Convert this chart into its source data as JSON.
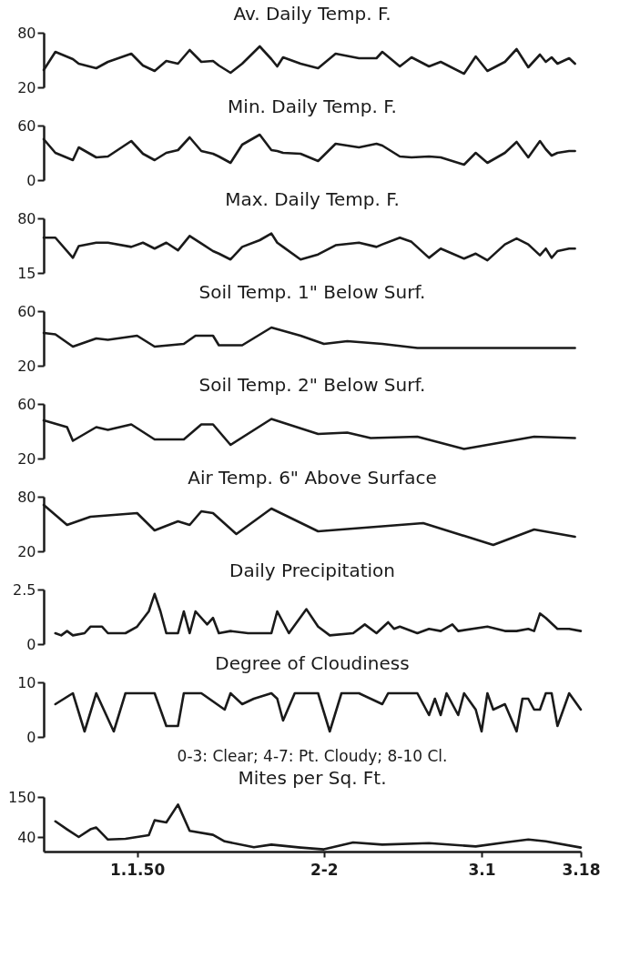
{
  "chart_data": [
    {
      "type": "line",
      "title": "Av. Daily Temp. F.",
      "xlim": [
        "1949-12-16",
        "1950-03-18"
      ],
      "ylim": [
        20,
        80
      ],
      "yticks": [
        20,
        80
      ],
      "tick_labels": "y",
      "x": [
        "1949-12-16",
        "1949-12-18",
        "1949-12-21",
        "1949-12-22",
        "1949-12-25",
        "1949-12-27",
        "1949-12-31",
        "1950-01-02",
        "1950-01-04",
        "1950-01-06",
        "1950-01-08",
        "1950-01-10",
        "1950-01-12",
        "1950-01-14",
        "1950-01-15",
        "1950-01-17",
        "1950-01-19",
        "1950-01-22",
        "1950-01-24",
        "1950-01-25",
        "1950-01-26",
        "1950-01-29",
        "1950-02-01",
        "1950-02-04",
        "1950-02-08",
        "1950-02-11",
        "1950-02-12",
        "1950-02-15",
        "1950-02-17",
        "1950-02-20",
        "1950-02-22",
        "1950-02-26",
        "1950-02-28",
        "1950-03-02",
        "1950-03-05",
        "1950-03-07",
        "1950-03-09",
        "1950-03-11",
        "1950-03-12",
        "1950-03-13",
        "1950-03-14",
        "1950-03-16",
        "1950-03-17"
      ],
      "series": [
        {
          "color": "#1a1a1a",
          "values": [
            39,
            59,
            51,
            46,
            41,
            48,
            57,
            44,
            38,
            49,
            46,
            61,
            48,
            49,
            44,
            36,
            46,
            65,
            51,
            43,
            53,
            46,
            41,
            57,
            52,
            52,
            59,
            43,
            53,
            43,
            48,
            35,
            54,
            38,
            48,
            62,
            42,
            56,
            48,
            53,
            46,
            52,
            46
          ]
        }
      ]
    },
    {
      "type": "line",
      "title": "Min. Daily Temp. F.",
      "xlim": [
        "1949-12-16",
        "1950-03-18"
      ],
      "ylim": [
        0,
        60
      ],
      "yticks": [
        0,
        60
      ],
      "tick_labels": "y",
      "x": [
        "1949-12-16",
        "1949-12-18",
        "1949-12-21",
        "1949-12-22",
        "1949-12-25",
        "1949-12-27",
        "1949-12-31",
        "1950-01-02",
        "1950-01-04",
        "1950-01-06",
        "1950-01-08",
        "1950-01-10",
        "1950-01-12",
        "1950-01-14",
        "1950-01-15",
        "1950-01-17",
        "1950-01-19",
        "1950-01-22",
        "1950-01-24",
        "1950-01-25",
        "1950-01-26",
        "1950-01-29",
        "1950-02-01",
        "1950-02-04",
        "1950-02-08",
        "1950-02-11",
        "1950-02-12",
        "1950-02-15",
        "1950-02-17",
        "1950-02-20",
        "1950-02-22",
        "1950-02-26",
        "1950-02-28",
        "1950-03-02",
        "1950-03-05",
        "1950-03-07",
        "1950-03-09",
        "1950-03-11",
        "1950-03-12",
        "1950-03-13",
        "1950-03-14",
        "1950-03-16",
        "1950-03-17"
      ],
      "series": [
        {
          "color": "#1a1a1a",
          "values": [
            45,
            30,
            22,
            36,
            25,
            26,
            43,
            29,
            22,
            30,
            33,
            47,
            32,
            29,
            26,
            19,
            39,
            50,
            33,
            32,
            30,
            29,
            21,
            40,
            36,
            40,
            38,
            26,
            25,
            26,
            25,
            17,
            30,
            19,
            30,
            42,
            25,
            43,
            34,
            27,
            30,
            32,
            32
          ]
        }
      ]
    },
    {
      "type": "line",
      "title": "Max. Daily Temp. F.",
      "xlim": [
        "1949-12-16",
        "1950-03-18"
      ],
      "ylim": [
        15,
        80
      ],
      "yticks": [
        15,
        80
      ],
      "tick_labels": "y",
      "x": [
        "1949-12-16",
        "1949-12-18",
        "1949-12-21",
        "1949-12-22",
        "1949-12-25",
        "1949-12-27",
        "1949-12-31",
        "1950-01-02",
        "1950-01-04",
        "1950-01-06",
        "1950-01-08",
        "1950-01-10",
        "1950-01-12",
        "1950-01-14",
        "1950-01-15",
        "1950-01-17",
        "1950-01-19",
        "1950-01-22",
        "1950-01-24",
        "1950-01-25",
        "1950-01-26",
        "1950-01-29",
        "1950-02-01",
        "1950-02-04",
        "1950-02-08",
        "1950-02-11",
        "1950-02-12",
        "1950-02-15",
        "1950-02-17",
        "1950-02-20",
        "1950-02-22",
        "1950-02-26",
        "1950-02-28",
        "1950-03-02",
        "1950-03-05",
        "1950-03-07",
        "1950-03-09",
        "1950-03-11",
        "1950-03-12",
        "1950-03-13",
        "1950-03-14",
        "1950-03-16",
        "1950-03-17"
      ],
      "series": [
        {
          "color": "#1a1a1a",
          "values": [
            57,
            57,
            33,
            47,
            51,
            51,
            46,
            51,
            44,
            51,
            42,
            59,
            50,
            41,
            38,
            31,
            46,
            54,
            62,
            51,
            46,
            31,
            37,
            48,
            51,
            46,
            49,
            57,
            52,
            33,
            44,
            32,
            38,
            30,
            49,
            56,
            49,
            36,
            44,
            33,
            41,
            44,
            44
          ]
        }
      ]
    },
    {
      "type": "line",
      "title": "Soil Temp. 1\" Below Surf.",
      "xlim": [
        "1949-12-16",
        "1950-03-18"
      ],
      "ylim": [
        20,
        60
      ],
      "yticks": [
        20,
        60
      ],
      "tick_labels": "y",
      "x": [
        "1949-12-16",
        "1949-12-18",
        "1949-12-21",
        "1949-12-25",
        "1949-12-27",
        "1950-01-01",
        "1950-01-04",
        "1950-01-09",
        "1950-01-11",
        "1950-01-14",
        "1950-01-15",
        "1950-01-19",
        "1950-01-24",
        "1950-01-29",
        "1950-02-02",
        "1950-02-06",
        "1950-02-12",
        "1950-02-18",
        "1950-03-03",
        "1950-03-17"
      ],
      "series": [
        {
          "color": "#1a1a1a",
          "values": [
            44,
            43,
            34,
            40,
            39,
            42,
            34,
            36,
            42,
            42,
            35,
            35,
            48,
            42,
            36,
            38,
            36,
            33,
            33,
            33
          ]
        }
      ]
    },
    {
      "type": "line",
      "title": "Soil Temp. 2\" Below Surf.",
      "xlim": [
        "1949-12-16",
        "1950-03-18"
      ],
      "ylim": [
        20,
        60
      ],
      "yticks": [
        20,
        60
      ],
      "tick_labels": "y",
      "x": [
        "1949-12-16",
        "1949-12-20",
        "1949-12-21",
        "1949-12-25",
        "1949-12-27",
        "1949-12-31",
        "1950-01-04",
        "1950-01-09",
        "1950-01-12",
        "1950-01-14",
        "1950-01-17",
        "1950-01-24",
        "1950-02-01",
        "1950-02-06",
        "1950-02-10",
        "1950-02-18",
        "1950-02-26",
        "1950-03-06",
        "1950-03-10",
        "1950-03-17"
      ],
      "series": [
        {
          "color": "#1a1a1a",
          "values": [
            48,
            43,
            33,
            43,
            41,
            45,
            34,
            34,
            45,
            45,
            30,
            49,
            38,
            39,
            35,
            36,
            27,
            33,
            36,
            35
          ]
        }
      ]
    },
    {
      "type": "line",
      "title": "Air Temp. 6\" Above Surface",
      "xlim": [
        "1949-12-16",
        "1950-03-18"
      ],
      "ylim": [
        20,
        80
      ],
      "yticks": [
        20,
        80
      ],
      "tick_labels": "y",
      "x": [
        "1949-12-16",
        "1949-12-20",
        "1949-12-24",
        "1950-01-01",
        "1950-01-04",
        "1950-01-08",
        "1950-01-10",
        "1950-01-12",
        "1950-01-14",
        "1950-01-18",
        "1950-01-24",
        "1950-02-01",
        "1950-02-19",
        "1950-03-03",
        "1950-03-10",
        "1950-03-17"
      ],
      "series": [
        {
          "color": "#1a1a1a",
          "values": [
            71,
            49,
            58,
            62,
            43,
            53,
            49,
            64,
            62,
            39,
            67,
            42,
            51,
            27,
            44,
            36
          ]
        }
      ]
    },
    {
      "type": "line",
      "title": "Daily Precipitation",
      "xlim": [
        "1949-12-16",
        "1950-03-18"
      ],
      "ylim": [
        0,
        2.5
      ],
      "yticks": [
        0,
        2.5
      ],
      "tick_labels": "y",
      "x": [
        "1949-12-18",
        "1949-12-19",
        "1949-12-20",
        "1949-12-21",
        "1949-12-23",
        "1949-12-24",
        "1949-12-26",
        "1949-12-27",
        "1949-12-30",
        "1950-01-01",
        "1950-01-03",
        "1950-01-04",
        "1950-01-05",
        "1950-01-06",
        "1950-01-08",
        "1950-01-09",
        "1950-01-10",
        "1950-01-11",
        "1950-01-13",
        "1950-01-14",
        "1950-01-15",
        "1950-01-17",
        "1950-01-20",
        "1950-01-24",
        "1950-01-25",
        "1950-01-27",
        "1950-01-30",
        "1950-02-01",
        "1950-02-03",
        "1950-02-07",
        "1950-02-09",
        "1950-02-11",
        "1950-02-13",
        "1950-02-14",
        "1950-02-15",
        "1950-02-18",
        "1950-02-20",
        "1950-02-22",
        "1950-02-24",
        "1950-02-25",
        "1950-03-02",
        "1950-03-05",
        "1950-03-07",
        "1950-03-09",
        "1950-03-10",
        "1950-03-11",
        "1950-03-12",
        "1950-03-14",
        "1950-03-16",
        "1950-03-18"
      ],
      "series": [
        {
          "color": "#1a1a1a",
          "values": [
            0.5,
            0.4,
            0.6,
            0.4,
            0.5,
            0.8,
            0.8,
            0.5,
            0.5,
            0.8,
            1.5,
            2.3,
            1.5,
            0.5,
            0.5,
            1.5,
            0.5,
            1.5,
            0.9,
            1.2,
            0.5,
            0.6,
            0.5,
            0.5,
            1.5,
            0.5,
            1.6,
            0.8,
            0.4,
            0.5,
            0.9,
            0.5,
            1.0,
            0.7,
            0.8,
            0.5,
            0.7,
            0.6,
            0.9,
            0.6,
            0.8,
            0.6,
            0.6,
            0.7,
            0.6,
            1.4,
            1.2,
            0.7,
            0.7,
            0.6
          ]
        }
      ]
    },
    {
      "type": "line",
      "title": "Degree of Cloudiness",
      "xlim": [
        "1949-12-16",
        "1950-03-18"
      ],
      "ylim": [
        0,
        10
      ],
      "yticks": [
        0,
        10
      ],
      "tick_labels": "y",
      "annotations": [
        "0-3: Clear; 4-7: Pt. Cloudy; 8-10 Cl."
      ],
      "x": [
        "1949-12-18",
        "1949-12-21",
        "1949-12-23",
        "1949-12-25",
        "1949-12-28",
        "1949-12-30",
        "1950-01-04",
        "1950-01-06",
        "1950-01-08",
        "1950-01-09",
        "1950-01-12",
        "1950-01-16",
        "1950-01-17",
        "1950-01-19",
        "1950-01-21",
        "1950-01-24",
        "1950-01-25",
        "1950-01-26",
        "1950-01-28",
        "1950-02-01",
        "1950-02-03",
        "1950-02-05",
        "1950-02-08",
        "1950-02-12",
        "1950-02-13",
        "1950-02-16",
        "1950-02-18",
        "1950-02-20",
        "1950-02-21",
        "1950-02-22",
        "1950-02-23",
        "1950-02-25",
        "1950-02-26",
        "1950-02-28",
        "1950-03-01",
        "1950-03-02",
        "1950-03-03",
        "1950-03-05",
        "1950-03-07",
        "1950-03-08",
        "1950-03-09",
        "1950-03-10",
        "1950-03-11",
        "1950-03-12",
        "1950-03-13",
        "1950-03-14",
        "1950-03-16",
        "1950-03-18"
      ],
      "series": [
        {
          "color": "#1a1a1a",
          "values": [
            6,
            8,
            1,
            8,
            1,
            8,
            8,
            2,
            2,
            8,
            8,
            5,
            8,
            6,
            7,
            8,
            7,
            3,
            8,
            8,
            1,
            8,
            8,
            6,
            8,
            8,
            8,
            4,
            7,
            4,
            8,
            4,
            8,
            5,
            1,
            8,
            5,
            6,
            1,
            7,
            7,
            5,
            5,
            8,
            8,
            2,
            8,
            5
          ]
        }
      ]
    },
    {
      "type": "line",
      "title": "Mites per Sq. Ft.",
      "xlim": [
        "1949-12-16",
        "1950-03-18"
      ],
      "ylim": [
        0,
        150
      ],
      "yticks": [
        40,
        150
      ],
      "xticks": [
        {
          "value": "1950-01-01",
          "label": "1.1.50"
        },
        {
          "value": "1950-02-02",
          "label": "2-2"
        },
        {
          "value": "1950-03-01",
          "label": "3.1"
        },
        {
          "value": "1950-03-18",
          "label": "3.18"
        }
      ],
      "x": [
        "1949-12-18",
        "1949-12-20",
        "1949-12-22",
        "1949-12-24",
        "1949-12-25",
        "1949-12-27",
        "1949-12-30",
        "1950-01-03",
        "1950-01-04",
        "1950-01-06",
        "1950-01-08",
        "1950-01-10",
        "1950-01-14",
        "1950-01-16",
        "1950-01-21",
        "1950-01-24",
        "1950-01-29",
        "1950-02-02",
        "1950-02-07",
        "1950-02-12",
        "1950-02-20",
        "1950-02-28",
        "1950-03-05",
        "1950-03-09",
        "1950-03-12",
        "1950-03-18"
      ],
      "series": [
        {
          "color": "#1a1a1a",
          "values": [
            83,
            61,
            40,
            61,
            66,
            33,
            35,
            45,
            86,
            80,
            129,
            57,
            46,
            28,
            12,
            19,
            11,
            6,
            25,
            19,
            23,
            14,
            25,
            33,
            28,
            11
          ]
        }
      ]
    }
  ]
}
